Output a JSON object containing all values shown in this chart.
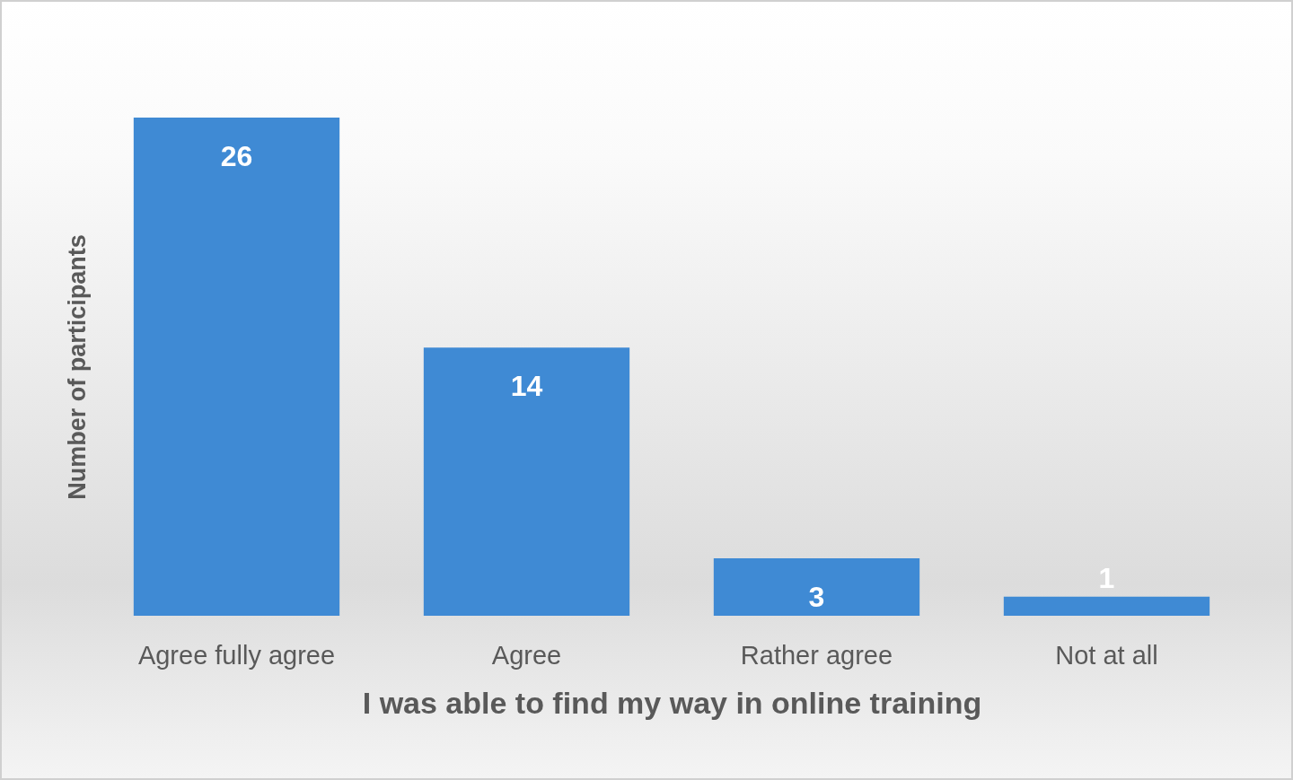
{
  "chart_data": {
    "type": "bar",
    "xlabel": "I was able to find my way in online training",
    "ylabel": "Number of participants",
    "categories": [
      "Agree fully agree",
      "Agree",
      "Rather agree",
      "Not at all"
    ],
    "values": [
      26,
      14,
      3,
      1
    ],
    "color": "#3f8ad4",
    "data_labels": true
  }
}
